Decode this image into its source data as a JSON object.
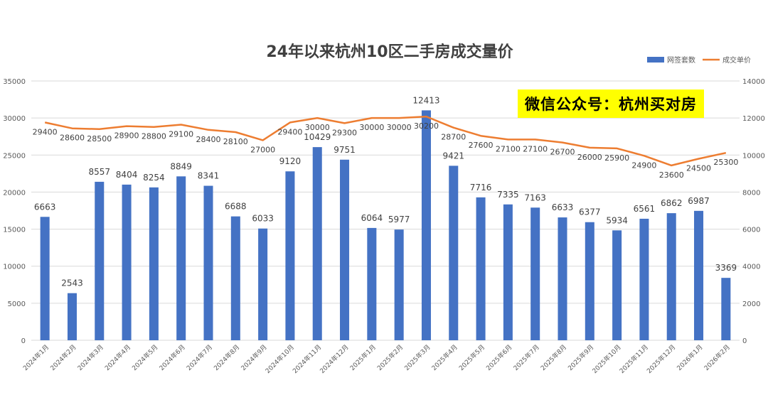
{
  "chart_data": {
    "type": "bar",
    "title": "24年以来杭州10区二手房成交量价",
    "categories": [
      "2024年1月",
      "2024年2月",
      "2024年3月",
      "2024年4月",
      "2024年5月",
      "2024年6月",
      "2024年7月",
      "2024年8月",
      "2024年9月",
      "2024年10月",
      "2024年11月",
      "2024年12月",
      "2025年1月",
      "2025年2月",
      "2025年3月",
      "2025年4月",
      "2025年5月",
      "2025年6月",
      "2025年7月",
      "2025年8月",
      "2025年9月",
      "2025年10月",
      "2025年11月",
      "2025年12月",
      "2026年1月",
      "2026年2月"
    ],
    "series": [
      {
        "name": "网签套数",
        "type": "bar",
        "axis": "right",
        "color": "#4472c4",
        "values": [
          6663,
          2543,
          8557,
          8404,
          8254,
          8849,
          8341,
          6688,
          6033,
          9120,
          10429,
          9751,
          6064,
          5977,
          12413,
          9421,
          7716,
          7335,
          7163,
          6633,
          6377,
          5934,
          6561,
          6862,
          6987,
          3369
        ]
      },
      {
        "name": "成交单价",
        "type": "line",
        "axis": "left",
        "color": "#ed7d31",
        "values": [
          29400,
          28600,
          28500,
          28900,
          28800,
          29100,
          28400,
          28100,
          27000,
          29400,
          30000,
          29300,
          30000,
          30000,
          30200,
          28700,
          27600,
          27100,
          27100,
          26700,
          26000,
          25900,
          24900,
          23600,
          24500,
          25300
        ]
      }
    ],
    "y_left": {
      "ticks": [
        0,
        5000,
        10000,
        15000,
        20000,
        25000,
        30000,
        35000
      ],
      "lim": [
        0,
        35000
      ]
    },
    "y_right": {
      "ticks": [
        0,
        2000,
        4000,
        6000,
        8000,
        10000,
        12000,
        14000
      ],
      "lim": [
        0,
        14000
      ]
    },
    "grid": true,
    "legend": "top-right"
  },
  "watermark": "微信公众号：杭州买对房"
}
